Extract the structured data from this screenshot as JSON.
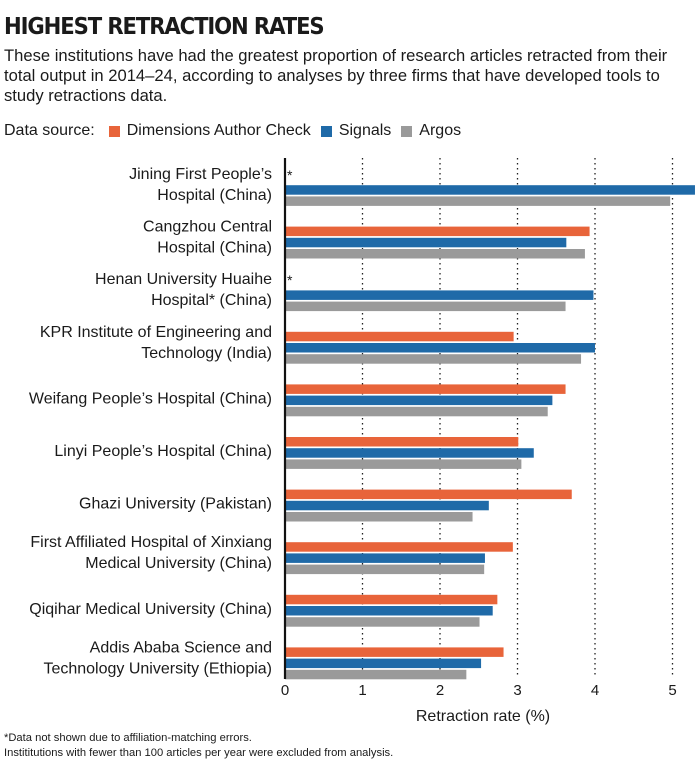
{
  "header": {
    "title": "HIGHEST RETRACTION RATES",
    "subtitle": "These institutions have had the greatest proportion of research articles retracted from their total output in 2014–24, according to analyses by three firms that have developed tools to study retractions data."
  },
  "legend": {
    "lead": "Data source:",
    "items": [
      {
        "label": "Dimensions Author Check",
        "color": "#e8643a"
      },
      {
        "label": "Signals",
        "color": "#1f6aa8"
      },
      {
        "label": "Argos",
        "color": "#9a9a9a"
      }
    ]
  },
  "footnotes": {
    "note1": "*Data not shown due to affiliation-matching errors.",
    "note2": "Instititutions with fewer than 100 articles per year were excluded from analysis."
  },
  "chart_data": {
    "type": "bar",
    "orientation": "horizontal",
    "xlabel": "Retraction rate (%)",
    "xlim": [
      0,
      5.3
    ],
    "xticks": [
      0,
      1,
      2,
      3,
      4,
      5
    ],
    "grid": "vertical dotted",
    "categories": [
      [
        "Jining First People’s",
        "Hospital (China)"
      ],
      [
        "Cangzhou Central",
        "Hospital (China)"
      ],
      [
        "Henan University Huaihe",
        "Hospital* (China)"
      ],
      [
        "KPR Institute of Engineering and",
        "Technology (India)"
      ],
      [
        "Weifang People’s Hospital (China)"
      ],
      [
        "Linyi People’s Hospital (China)"
      ],
      [
        "Ghazi University (Pakistan)"
      ],
      [
        "First Affiliated Hospital of Xinxiang",
        "Medical University (China)"
      ],
      [
        "Qiqihar Medical University (China)"
      ],
      [
        "Addis Ababa Science and",
        "Technology University (Ethiopia)"
      ]
    ],
    "missing_marker": "*",
    "series": [
      {
        "name": "Dimensions Author Check",
        "color": "#e8643a",
        "values": [
          null,
          3.93,
          null,
          2.95,
          3.62,
          3.01,
          3.7,
          2.94,
          2.74,
          2.82
        ]
      },
      {
        "name": "Signals",
        "color": "#1f6aa8",
        "values": [
          5.29,
          3.63,
          3.98,
          4.0,
          3.45,
          3.21,
          2.63,
          2.58,
          2.68,
          2.53
        ]
      },
      {
        "name": "Argos",
        "color": "#9a9a9a",
        "values": [
          4.97,
          3.87,
          3.62,
          3.82,
          3.39,
          3.05,
          2.42,
          2.57,
          2.51,
          2.34
        ]
      }
    ]
  }
}
